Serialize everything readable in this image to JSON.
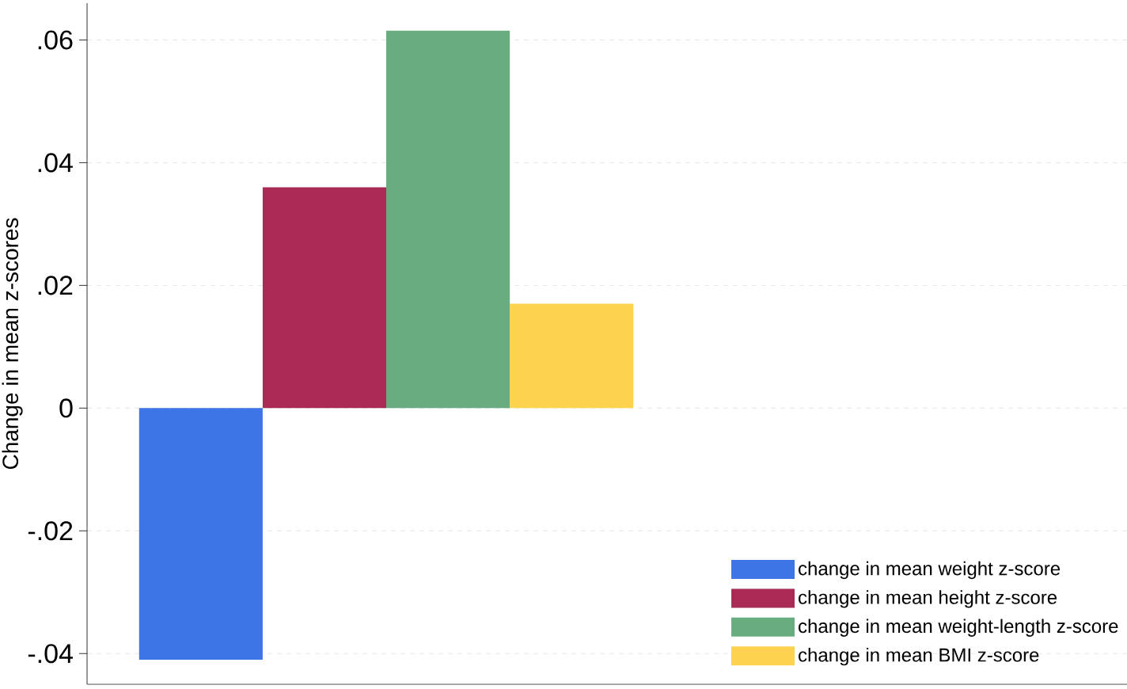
{
  "chart_data": {
    "type": "bar",
    "ylabel": "Change in mean z-scores",
    "categories": [
      null
    ],
    "series": [
      {
        "name": "change in mean weight z-score",
        "color": "#3d75e6",
        "values": [
          -0.041
        ]
      },
      {
        "name": "change in mean height z-score",
        "color": "#a92a54",
        "values": [
          0.036
        ]
      },
      {
        "name": "change in mean weight-length z-score",
        "color": "#68ac80",
        "values": [
          0.0615
        ]
      },
      {
        "name": "change in mean BMI z-score",
        "color": "#fdd24f",
        "values": [
          0.017
        ]
      }
    ],
    "ylim": [
      -0.045,
      0.066
    ],
    "yticks": [
      {
        "value": -0.04,
        "label": "-.04"
      },
      {
        "value": -0.02,
        "label": "-.02"
      },
      {
        "value": 0,
        "label": "0"
      },
      {
        "value": 0.02,
        "label": ".02"
      },
      {
        "value": 0.04,
        "label": ".04"
      },
      {
        "value": 0.06,
        "label": ".06"
      }
    ],
    "grid": "y",
    "legend": "bottom right"
  }
}
